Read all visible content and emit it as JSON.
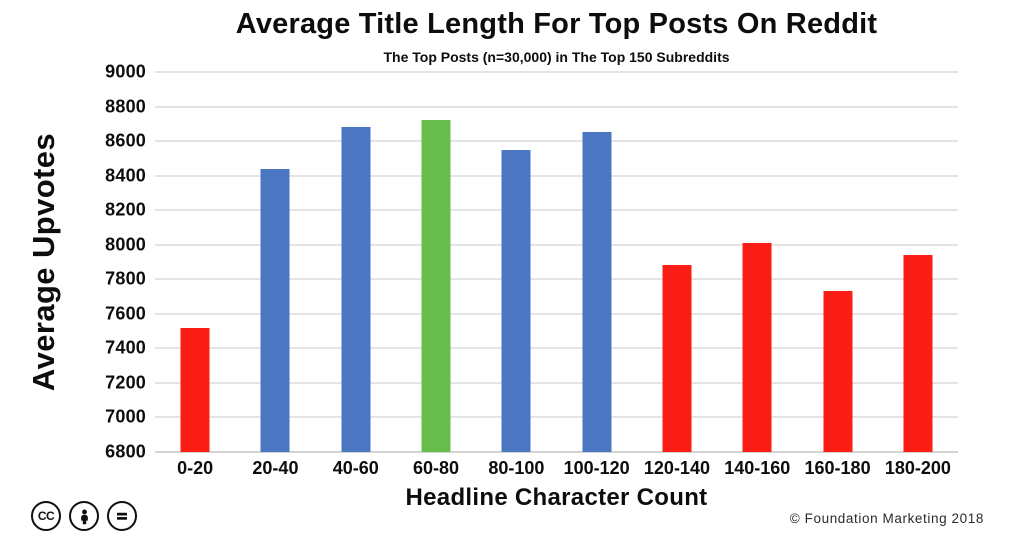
{
  "chart_data": {
    "type": "bar",
    "title": "Average Title Length For Top Posts On Reddit",
    "subtitle": "The Top Posts (n=30,000) in The Top 150 Subreddits",
    "xlabel": "Headline Character Count",
    "ylabel": "Average Upvotes",
    "categories": [
      "0-20",
      "20-40",
      "40-60",
      "60-80",
      "80-100",
      "100-120",
      "120-140",
      "140-160",
      "160-180",
      "180-200"
    ],
    "values": [
      7520,
      8440,
      8680,
      8720,
      8550,
      8650,
      7880,
      8010,
      7730,
      7940
    ],
    "bar_colors": [
      "#fa1e14",
      "#4a76c2",
      "#4a76c2",
      "#67bd4c",
      "#4a76c2",
      "#4a76c2",
      "#fa1e14",
      "#fa1e14",
      "#fa1e14",
      "#fa1e14"
    ],
    "color_legend": {
      "red": "#fa1e14",
      "blue": "#4a76c2",
      "green": "#67bd4c"
    },
    "ylim": [
      6800,
      9000
    ],
    "ytick_step": 200,
    "grid": "horizontal",
    "legend_position": "none"
  },
  "footer": {
    "credit": "© Foundation Marketing 2018",
    "cc_label": "CC",
    "license_icons": [
      "cc-icon",
      "attribution-person-icon",
      "equals-icon"
    ]
  }
}
